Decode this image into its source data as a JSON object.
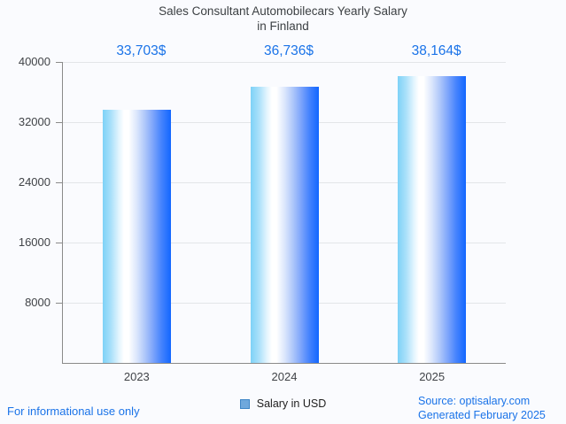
{
  "title": {
    "line1": "Sales Consultant Automobilecars Yearly Salary",
    "line2": "in Finland"
  },
  "chart_data": {
    "type": "bar",
    "title": "Sales Consultant Automobilecars Yearly Salary in Finland",
    "categories": [
      "2023",
      "2024",
      "2025"
    ],
    "series": [
      {
        "name": "Salary in USD",
        "values": [
          33703,
          36736,
          38164
        ]
      }
    ],
    "value_labels": [
      "33,703$",
      "36,736$",
      "38,164$"
    ],
    "xlabel": "",
    "ylabel": "",
    "ylim": [
      0,
      40000
    ],
    "yticks": [
      8000,
      16000,
      24000,
      32000,
      40000
    ],
    "grid": true,
    "legend_position": "bottom"
  },
  "legend": {
    "label": "Salary in USD"
  },
  "footer": {
    "disclaimer": "For informational use only",
    "source": "Source: optisalary.com",
    "generated": "Generated February 2025"
  },
  "colors": {
    "background": "#fafbfe",
    "accent_text": "#1a73e8",
    "title_text": "#3c4043",
    "axis_line": "#8a8a8a",
    "gridline": "#e3e5e8",
    "bar_gradient_left": "#7ed2f7",
    "bar_gradient_mid": "#ffffff",
    "bar_gradient_right": "#1266ff",
    "legend_marker_fill": "#6fa8dc",
    "legend_marker_border": "#3d85c6"
  }
}
